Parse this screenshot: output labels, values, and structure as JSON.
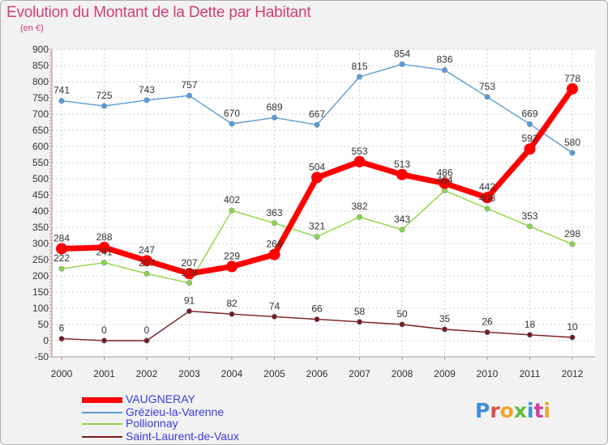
{
  "title": "Evolution du Montant de la Dette par Habitant",
  "subtitle": "(en €)",
  "logo_text": "Proxiti",
  "chart_data": {
    "type": "line",
    "x": [
      "2000",
      "2001",
      "2002",
      "2003",
      "2004",
      "2005",
      "2006",
      "2007",
      "2008",
      "2009",
      "2010",
      "2011",
      "2012"
    ],
    "ylim": [
      -50,
      900
    ],
    "yticks": [
      -50,
      0,
      50,
      100,
      150,
      200,
      250,
      300,
      350,
      400,
      450,
      500,
      550,
      600,
      650,
      700,
      750,
      800,
      850,
      900
    ],
    "grid": true,
    "legend_position": "bottom-left",
    "series": [
      {
        "name": "VAUGNERAY",
        "color": "#ff0000",
        "values": [
          284,
          288,
          247,
          207,
          229,
          266,
          504,
          553,
          513,
          486,
          442,
          592,
          778
        ],
        "labels": [
          "284",
          "288",
          "247",
          "207",
          "229",
          "266",
          "504",
          "553",
          "513",
          "486",
          "442",
          "592",
          "778"
        ]
      },
      {
        "name": "Grézieu-la-Varenne",
        "color": "#5b9bd5",
        "values": [
          741,
          725,
          743,
          757,
          670,
          689,
          667,
          815,
          854,
          836,
          753,
          669,
          580
        ],
        "labels": [
          "741",
          "725",
          "743",
          "757",
          "670",
          "689",
          "667",
          "815",
          "854",
          "836",
          "753",
          "669",
          "580"
        ]
      },
      {
        "name": "Pollionnay",
        "color": "#8fd63f",
        "values": [
          222,
          241,
          207,
          178,
          402,
          363,
          321,
          382,
          343,
          464,
          408,
          353,
          298
        ],
        "labels": [
          "222",
          "241",
          "207",
          "178",
          "402",
          "363",
          "321",
          "382",
          "343",
          "464",
          "408",
          "353",
          "298"
        ]
      },
      {
        "name": "Saint-Laurent-de-Vaux",
        "color": "#7a1a1a",
        "values": [
          6,
          0,
          0,
          91,
          82,
          74,
          66,
          58,
          50,
          35,
          26,
          18,
          10
        ],
        "labels": [
          "6",
          "0",
          "0",
          "91",
          "82",
          "74",
          "66",
          "58",
          "50",
          "35",
          "26",
          "18",
          "10"
        ]
      }
    ]
  }
}
